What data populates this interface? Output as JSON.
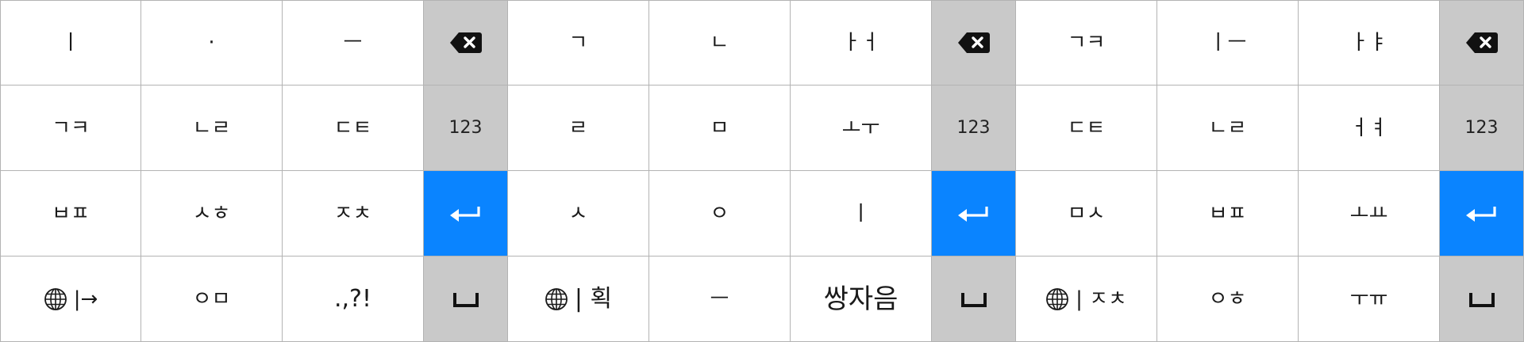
{
  "colors": {
    "key_bg": "#ffffff",
    "function_key_bg": "#c9c9c9",
    "enter_key_bg": "#0a84ff",
    "grid_line": "#b3b3b3"
  },
  "keyboards": [
    {
      "rows": [
        [
          "ㅣ",
          "·",
          "ㅡ"
        ],
        [
          "ㄱㅋ",
          "ㄴㄹ",
          "ㄷㅌ"
        ],
        [
          "ㅂㅍ",
          "ㅅㅎ",
          "ㅈㅊ"
        ],
        [
          "|→",
          "ㅇㅁ",
          ".,?!"
        ]
      ]
    },
    {
      "rows": [
        [
          "ㄱ",
          "ㄴ",
          "ㅏㅓ"
        ],
        [
          "ㄹ",
          "ㅁ",
          "ㅗㅜ"
        ],
        [
          "ㅅ",
          "ㅇ",
          "ㅣ"
        ],
        [
          "| 획",
          "ㅡ",
          "쌍자음"
        ]
      ]
    },
    {
      "rows": [
        [
          "ㄱㅋ",
          "ㅣㅡ",
          "ㅏㅑ"
        ],
        [
          "ㄷㅌ",
          "ㄴㄹ",
          "ㅓㅕ"
        ],
        [
          "ㅁㅅ",
          "ㅂㅍ",
          "ㅗㅛ"
        ],
        [
          "| ㅈㅊ",
          "ㅇㅎ",
          "ㅜㅠ"
        ]
      ]
    }
  ],
  "function_keys": {
    "backspace_icon": "backspace-icon",
    "numbers_label": "123",
    "enter_icon": "return-icon",
    "space_icon": "space-bar-icon",
    "globe_icon": "globe-icon"
  }
}
